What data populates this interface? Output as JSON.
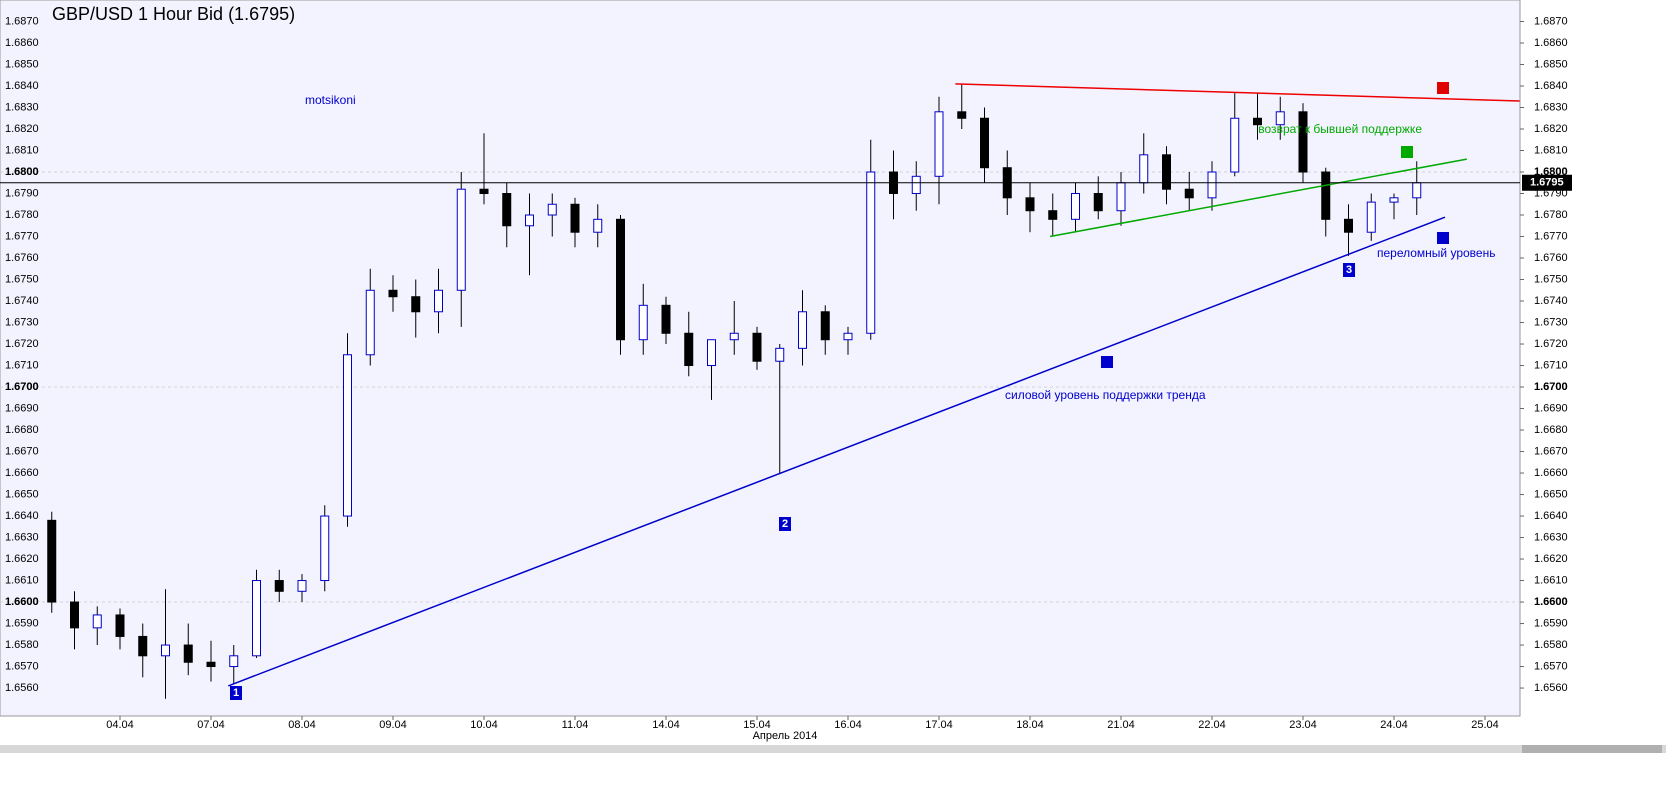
{
  "chart_data": {
    "type": "candlestick",
    "title": "GBP/USD 1 Hour Bid (1.6795)",
    "x_label": "Апрель 2014",
    "xlim": [
      -1.3187,
      15.3846
    ],
    "xticks": [
      {
        "value": 0,
        "label": "04.04"
      },
      {
        "value": 1,
        "label": "07.04"
      },
      {
        "value": 2,
        "label": "08.04"
      },
      {
        "value": 3,
        "label": "09.04"
      },
      {
        "value": 4,
        "label": "10.04"
      },
      {
        "value": 5,
        "label": "11.04"
      },
      {
        "value": 6,
        "label": "14.04"
      },
      {
        "value": 7,
        "label": "15.04"
      },
      {
        "value": 8,
        "label": "16.04"
      },
      {
        "value": 9,
        "label": "17.04"
      },
      {
        "value": 10,
        "label": "18.04"
      },
      {
        "value": 11,
        "label": "21.04"
      },
      {
        "value": 12,
        "label": "22.04"
      },
      {
        "value": 13,
        "label": "23.04"
      },
      {
        "value": 14,
        "label": "24.04"
      },
      {
        "value": 15,
        "label": "25.04"
      }
    ],
    "ylim": [
      1.6547,
      1.688
    ],
    "yticks": [
      {
        "value": 1.656,
        "label": "1.6560"
      },
      {
        "value": 1.657,
        "label": "1.6570"
      },
      {
        "value": 1.658,
        "label": "1.6580"
      },
      {
        "value": 1.659,
        "label": "1.6590"
      },
      {
        "value": 1.66,
        "label": "1.6600"
      },
      {
        "value": 1.661,
        "label": "1.6610"
      },
      {
        "value": 1.662,
        "label": "1.6620"
      },
      {
        "value": 1.663,
        "label": "1.6630"
      },
      {
        "value": 1.664,
        "label": "1.6640"
      },
      {
        "value": 1.665,
        "label": "1.6650"
      },
      {
        "value": 1.666,
        "label": "1.6660"
      },
      {
        "value": 1.667,
        "label": "1.6670"
      },
      {
        "value": 1.668,
        "label": "1.6680"
      },
      {
        "value": 1.669,
        "label": "1.6690"
      },
      {
        "value": 1.67,
        "label": "1.6700"
      },
      {
        "value": 1.671,
        "label": "1.6710"
      },
      {
        "value": 1.672,
        "label": "1.6720"
      },
      {
        "value": 1.673,
        "label": "1.6730"
      },
      {
        "value": 1.674,
        "label": "1.6740"
      },
      {
        "value": 1.675,
        "label": "1.6750"
      },
      {
        "value": 1.676,
        "label": "1.6760"
      },
      {
        "value": 1.677,
        "label": "1.6770"
      },
      {
        "value": 1.678,
        "label": "1.6780"
      },
      {
        "value": 1.679,
        "label": "1.6790"
      },
      {
        "value": 1.68,
        "label": "1.6800"
      },
      {
        "value": 1.681,
        "label": "1.6810"
      },
      {
        "value": 1.682,
        "label": "1.6820"
      },
      {
        "value": 1.683,
        "label": "1.6830"
      },
      {
        "value": 1.684,
        "label": "1.6840"
      },
      {
        "value": 1.685,
        "label": "1.6850"
      },
      {
        "value": 1.686,
        "label": "1.6860"
      },
      {
        "value": 1.687,
        "label": "1.6870"
      }
    ],
    "major_yticks": [
      {
        "value": 1.66,
        "label": "1.6600"
      },
      {
        "value": 1.67,
        "label": "1.6700"
      },
      {
        "value": 1.68,
        "label": "1.6800"
      }
    ],
    "up_color": "#0000cc",
    "down_color": "#000000",
    "x": [
      -0.75,
      -0.5,
      -0.25,
      0,
      0.25,
      0.5,
      0.75,
      1,
      1.25,
      1.5,
      1.75,
      2,
      2.25,
      2.5,
      2.75,
      3,
      3.25,
      3.5,
      3.75,
      4,
      4.25,
      4.5,
      4.75,
      5,
      5.25,
      5.5,
      5.75,
      6,
      6.25,
      6.5,
      6.75,
      7,
      7.25,
      7.5,
      7.75,
      8,
      8.25,
      8.5,
      8.75,
      9,
      9.25,
      9.5,
      9.75,
      10,
      10.25,
      10.5,
      10.75,
      11,
      11.25,
      11.5,
      11.75,
      12,
      12.25,
      12.5,
      12.75,
      13,
      13.25,
      13.5,
      13.75,
      14,
      14.25
    ],
    "open": [
      1.6638,
      1.66,
      1.6588,
      1.6594,
      1.6584,
      1.6575,
      1.658,
      1.6572,
      1.657,
      1.6575,
      1.661,
      1.6605,
      1.661,
      1.664,
      1.6715,
      1.6745,
      1.6742,
      1.6735,
      1.6745,
      1.6792,
      1.679,
      1.6775,
      1.678,
      1.6785,
      1.6772,
      1.6778,
      1.6722,
      1.6738,
      1.6725,
      1.671,
      1.6722,
      1.6725,
      1.6712,
      1.6718,
      1.6735,
      1.6722,
      1.6725,
      1.68,
      1.679,
      1.6798,
      1.6828,
      1.6825,
      1.6802,
      1.6788,
      1.6782,
      1.6778,
      1.679,
      1.6782,
      1.6795,
      1.6808,
      1.6792,
      1.6788,
      1.68,
      1.6825,
      1.6822,
      1.6828,
      1.68,
      1.6778,
      1.6772,
      1.6786,
      1.6788
    ],
    "high": [
      1.6642,
      1.6605,
      1.6598,
      1.6597,
      1.659,
      1.6606,
      1.659,
      1.6582,
      1.658,
      1.6615,
      1.6615,
      1.6613,
      1.6645,
      1.6725,
      1.6755,
      1.6752,
      1.675,
      1.6755,
      1.68,
      1.6818,
      1.6795,
      1.679,
      1.679,
      1.6788,
      1.6785,
      1.678,
      1.6748,
      1.6742,
      1.6735,
      1.672,
      1.674,
      1.6728,
      1.672,
      1.6745,
      1.6738,
      1.6728,
      1.6815,
      1.681,
      1.6805,
      1.6835,
      1.6841,
      1.683,
      1.681,
      1.6795,
      1.679,
      1.6795,
      1.6798,
      1.68,
      1.6818,
      1.6812,
      1.68,
      1.6805,
      1.6837,
      1.6837,
      1.6835,
      1.6832,
      1.6802,
      1.6785,
      1.679,
      1.679,
      1.6805
    ],
    "low": [
      1.6595,
      1.6578,
      1.658,
      1.6578,
      1.6565,
      1.6555,
      1.6566,
      1.6563,
      1.6562,
      1.6574,
      1.66,
      1.66,
      1.6605,
      1.6635,
      1.671,
      1.6735,
      1.6723,
      1.6725,
      1.6728,
      1.6785,
      1.6765,
      1.6752,
      1.677,
      1.6765,
      1.6765,
      1.6715,
      1.6715,
      1.672,
      1.6705,
      1.6694,
      1.6715,
      1.6708,
      1.666,
      1.671,
      1.6715,
      1.6715,
      1.6722,
      1.6778,
      1.6782,
      1.6785,
      1.682,
      1.6795,
      1.678,
      1.6772,
      1.677,
      1.6772,
      1.6778,
      1.6775,
      1.679,
      1.6785,
      1.6782,
      1.6782,
      1.6798,
      1.6815,
      1.6815,
      1.6795,
      1.677,
      1.6761,
      1.6768,
      1.6778,
      1.678
    ],
    "close": [
      1.66,
      1.6588,
      1.6594,
      1.6584,
      1.6575,
      1.658,
      1.6572,
      1.657,
      1.6575,
      1.661,
      1.6605,
      1.661,
      1.664,
      1.6715,
      1.6745,
      1.6742,
      1.6735,
      1.6745,
      1.6792,
      1.679,
      1.6775,
      1.678,
      1.6785,
      1.6772,
      1.6778,
      1.6722,
      1.6738,
      1.6725,
      1.671,
      1.6722,
      1.6725,
      1.6712,
      1.6718,
      1.6735,
      1.6722,
      1.6725,
      1.68,
      1.679,
      1.6798,
      1.6828,
      1.6825,
      1.6802,
      1.6788,
      1.6782,
      1.6778,
      1.679,
      1.6782,
      1.6795,
      1.6808,
      1.6792,
      1.6788,
      1.68,
      1.6825,
      1.6822,
      1.6828,
      1.68,
      1.6778,
      1.6772,
      1.6786,
      1.6788,
      1.6795
    ],
    "current_price": {
      "value": 1.6795,
      "label": "1.6795"
    },
    "trendlines": [
      {
        "color": "#0000cc",
        "x": [
          1.19,
          14.56
        ],
        "y": [
          1.6561,
          1.6779
        ]
      },
      {
        "color": "#ee0000",
        "x": [
          9.18,
          15.38
        ],
        "y": [
          1.6841,
          1.6833
        ]
      },
      {
        "color": "#00aa00",
        "x": [
          10.22,
          14.8
        ],
        "y": [
          1.677,
          1.6806
        ]
      }
    ],
    "annotations": [
      {
        "text": "motsikoni",
        "color": "#0000cc"
      },
      {
        "text": "возврат к бывшей поддержке",
        "color": "#00aa00"
      },
      {
        "text": "переломный уровень",
        "color": "#0000cc"
      },
      {
        "text": "силовой уровень поддержки тренда",
        "color": "#0000cc"
      }
    ],
    "markers": [
      "1",
      "2",
      "3"
    ]
  }
}
